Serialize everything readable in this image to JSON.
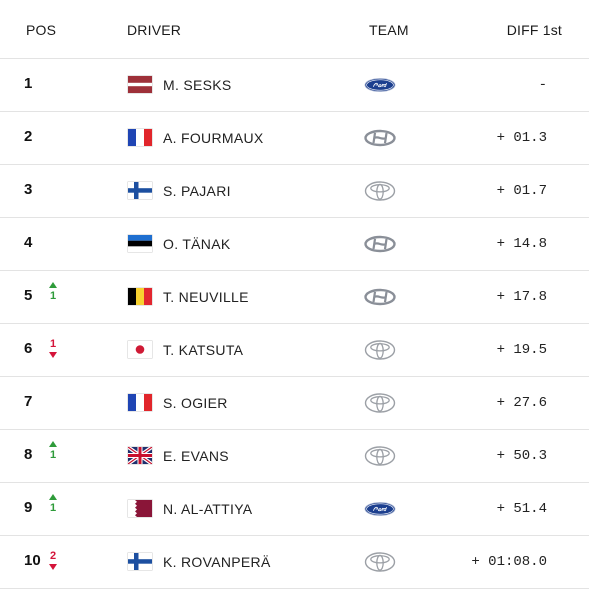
{
  "header": {
    "pos": "POS",
    "driver": "DRIVER",
    "team": "TEAM",
    "diff": "DIFF 1st"
  },
  "rows": [
    {
      "pos": "1",
      "change": "",
      "change_dir": "",
      "flag": "latvia-flag",
      "driver": "M. SESKS",
      "team": "ford-logo",
      "diff": "-"
    },
    {
      "pos": "2",
      "change": "",
      "change_dir": "",
      "flag": "france-flag",
      "driver": "A. FOURMAUX",
      "team": "hyundai-logo",
      "diff": "+ 01.3"
    },
    {
      "pos": "3",
      "change": "",
      "change_dir": "",
      "flag": "finland-flag",
      "driver": "S. PAJARI",
      "team": "toyota-logo",
      "diff": "+ 01.7"
    },
    {
      "pos": "4",
      "change": "",
      "change_dir": "",
      "flag": "estonia-flag",
      "driver": "O. TÄNAK",
      "team": "hyundai-logo",
      "diff": "+ 14.8"
    },
    {
      "pos": "5",
      "change": "1",
      "change_dir": "up",
      "flag": "belgium-flag",
      "driver": "T. NEUVILLE",
      "team": "hyundai-logo",
      "diff": "+ 17.8"
    },
    {
      "pos": "6",
      "change": "1",
      "change_dir": "down",
      "flag": "japan-flag",
      "driver": "T. KATSUTA",
      "team": "toyota-logo",
      "diff": "+ 19.5"
    },
    {
      "pos": "7",
      "change": "",
      "change_dir": "",
      "flag": "france-flag",
      "driver": "S. OGIER",
      "team": "toyota-logo",
      "diff": "+ 27.6"
    },
    {
      "pos": "8",
      "change": "1",
      "change_dir": "up",
      "flag": "uk-flag",
      "driver": "E. EVANS",
      "team": "toyota-logo",
      "diff": "+ 50.3"
    },
    {
      "pos": "9",
      "change": "1",
      "change_dir": "up",
      "flag": "qatar-flag",
      "driver": "N. AL-ATTIYA",
      "team": "ford-logo",
      "diff": "+ 51.4"
    },
    {
      "pos": "10",
      "change": "2",
      "change_dir": "down",
      "flag": "finland-flag",
      "driver": "K. ROVANPERÄ",
      "team": "toyota-logo",
      "diff": "+ 01:08.0"
    }
  ],
  "colors": {
    "up": "#2e9b3a",
    "down": "#d4143a",
    "divider": "#e3e3e3",
    "ford_blue": "#1c3f8f"
  }
}
